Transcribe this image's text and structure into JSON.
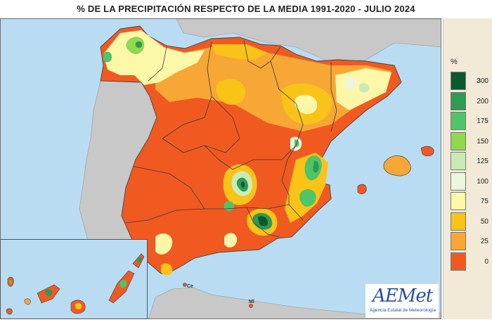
{
  "header": {
    "title": "% DE LA PRECIPITACIÓN RESPECTO DE LA MEDIA 1991-2020 - JULIO 2024"
  },
  "legend": {
    "unit": "%",
    "classes": [
      {
        "label": "300",
        "color": "#0b5a2e"
      },
      {
        "label": "200",
        "color": "#2f9a55"
      },
      {
        "label": "175",
        "color": "#4fc468"
      },
      {
        "label": "150",
        "color": "#8fd94e"
      },
      {
        "label": "125",
        "color": "#c9ecb7"
      },
      {
        "label": "100",
        "color": "#ecf6dd"
      },
      {
        "label": "75",
        "color": "#fdf7a8"
      },
      {
        "label": "50",
        "color": "#f9c318"
      },
      {
        "label": "25",
        "color": "#f7a735"
      },
      {
        "label": "0",
        "color": "#f05a21"
      }
    ]
  },
  "map": {
    "sea_color": "#b9dcf3",
    "neighbor_land_color": "#c8c8c8",
    "places": {
      "ceuta": "Ce",
      "melilla": "Ml"
    }
  },
  "logo": {
    "name": "AEMet",
    "subtitle": "Agencia Estatal de Meteorología"
  }
}
